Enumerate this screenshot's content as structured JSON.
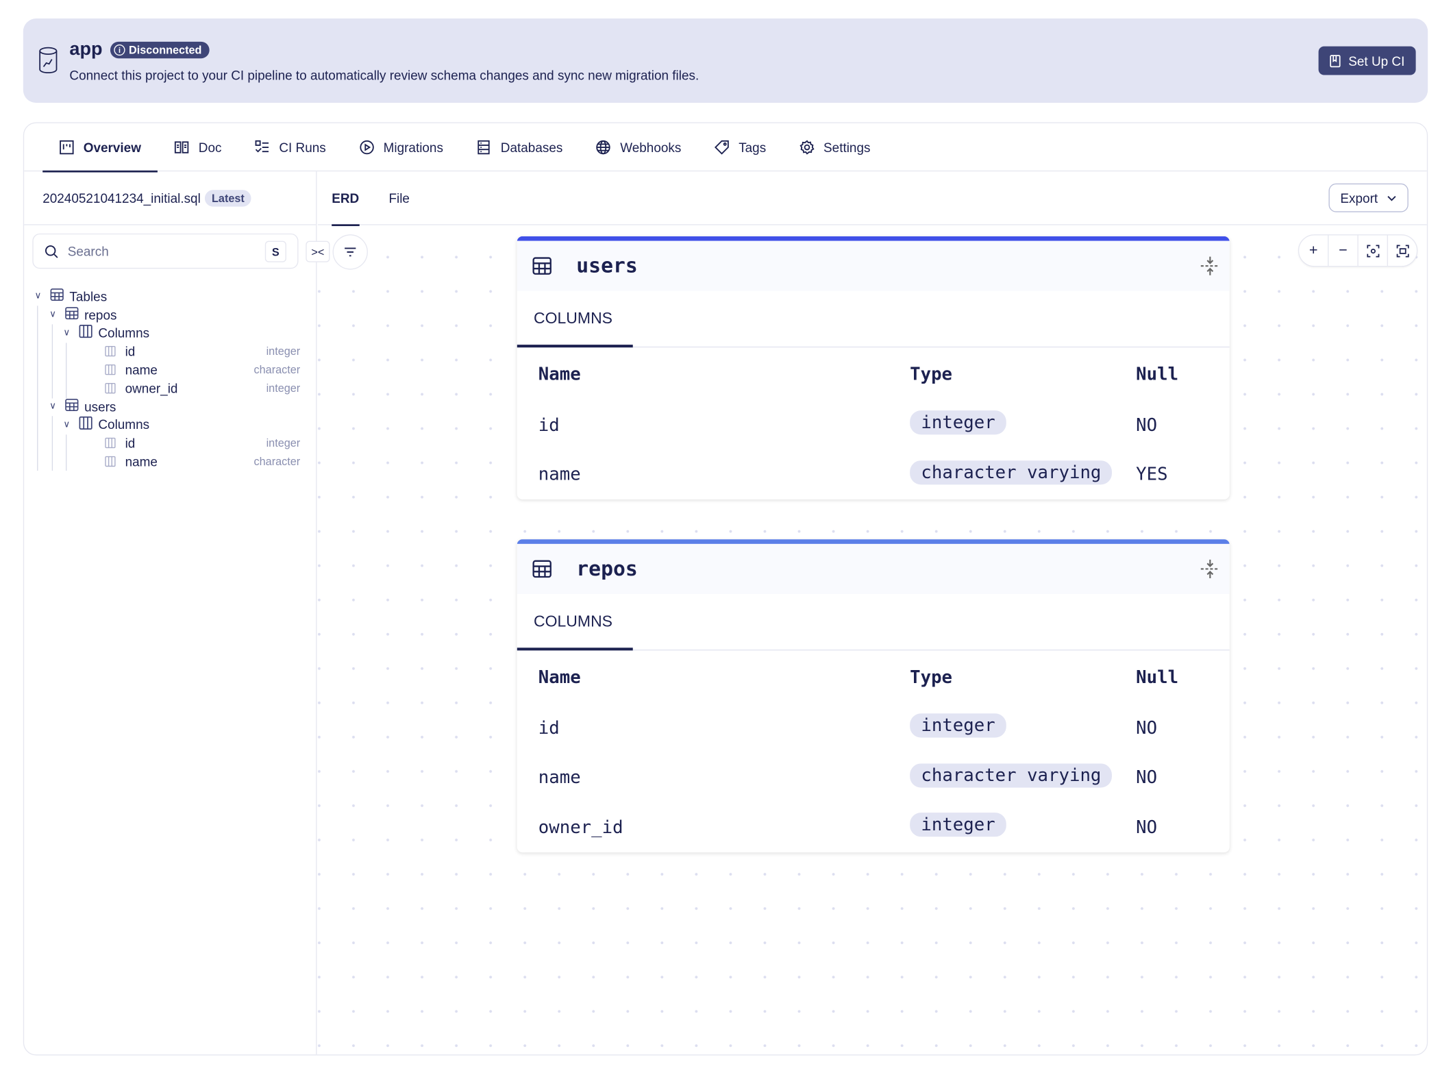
{
  "colors": {
    "accent": "#1c2150",
    "banner_bg": "#e2e4f3",
    "badge_bg": "#3e4577",
    "users_bar": "#4050e8",
    "repos_bar": "#5b7fe8"
  },
  "banner": {
    "icon": "database-icon",
    "title": "app",
    "status": "Disconnected",
    "status_icon": "info-icon",
    "description": "Connect this project to your CI pipeline to automatically review schema changes and sync new migration files.",
    "setup_button": "Set Up CI",
    "setup_icon": "book-icon"
  },
  "tabs": [
    {
      "label": "Overview",
      "icon": "overview-icon",
      "active": true
    },
    {
      "label": "Doc",
      "icon": "book-open-icon"
    },
    {
      "label": "CI Runs",
      "icon": "list-check-icon"
    },
    {
      "label": "Migrations",
      "icon": "play-circle-icon"
    },
    {
      "label": "Databases",
      "icon": "server-icon"
    },
    {
      "label": "Webhooks",
      "icon": "globe-icon"
    },
    {
      "label": "Tags",
      "icon": "tag-icon"
    },
    {
      "label": "Settings",
      "icon": "gear-icon"
    }
  ],
  "sidebar": {
    "file": "20240521041234_initial.sql",
    "file_badge": "Latest",
    "search": {
      "placeholder": "Search",
      "shortcut": "S"
    },
    "tree": {
      "root": "Tables",
      "tables": [
        {
          "name": "repos",
          "group": "Columns",
          "columns": [
            {
              "name": "id",
              "type": "integer"
            },
            {
              "name": "name",
              "type": "character"
            },
            {
              "name": "owner_id",
              "type": "integer"
            }
          ]
        },
        {
          "name": "users",
          "group": "Columns",
          "columns": [
            {
              "name": "id",
              "type": "integer"
            },
            {
              "name": "name",
              "type": "character"
            }
          ]
        }
      ]
    }
  },
  "main": {
    "subtabs": [
      "ERD",
      "File"
    ],
    "active_subtab": "ERD",
    "export": "Export"
  },
  "cards": [
    {
      "name": "users",
      "section": "COLUMNS",
      "headers": [
        "Name",
        "Type",
        "Null"
      ],
      "rows": [
        [
          "id",
          "integer",
          "NO"
        ],
        [
          "name",
          "character varying",
          "YES"
        ]
      ]
    },
    {
      "name": "repos",
      "section": "COLUMNS",
      "headers": [
        "Name",
        "Type",
        "Null"
      ],
      "rows": [
        [
          "id",
          "integer",
          "NO"
        ],
        [
          "name",
          "character varying",
          "NO"
        ],
        [
          "owner_id",
          "integer",
          "NO"
        ]
      ]
    }
  ]
}
